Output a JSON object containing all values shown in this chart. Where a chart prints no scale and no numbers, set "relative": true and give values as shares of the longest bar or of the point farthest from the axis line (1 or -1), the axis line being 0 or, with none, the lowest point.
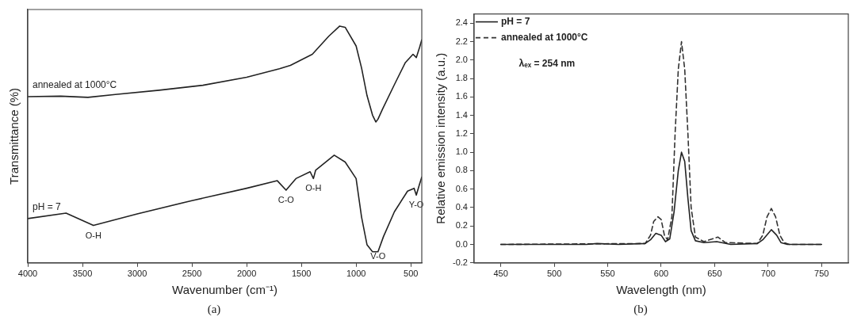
{
  "chart_data": [
    {
      "type": "line",
      "title": "(a)",
      "xlabel": "Wavenumber (cm⁻¹)",
      "ylabel": "Transmittance (%)",
      "relative": true,
      "xlim": [
        4000,
        400
      ],
      "xticks": [
        4000,
        3500,
        3000,
        2500,
        2000,
        1500,
        1000,
        500
      ],
      "tick_labels": "x",
      "grid": false,
      "marker": "none",
      "line_style": "solid",
      "series": [
        {
          "name": "annealed at 1000°C",
          "color": "#222222",
          "x": [
            4000,
            3700,
            3450,
            3200,
            2800,
            2400,
            2000,
            1700,
            1600,
            1400,
            1250,
            1150,
            1100,
            1000,
            950,
            900,
            850,
            820,
            800,
            760,
            650,
            550,
            480,
            450,
            420,
            400
          ],
          "values": [
            0.702,
            0.704,
            0.699,
            0.711,
            0.729,
            0.75,
            0.784,
            0.82,
            0.834,
            0.881,
            0.957,
            1.0,
            0.995,
            0.916,
            0.823,
            0.706,
            0.624,
            0.595,
            0.607,
            0.648,
            0.753,
            0.846,
            0.881,
            0.867,
            0.91,
            0.942
          ]
        },
        {
          "name": "pH = 7",
          "color": "#222222",
          "x": [
            4000,
            3650,
            3400,
            3000,
            2500,
            2000,
            1720,
            1640,
            1550,
            1420,
            1390,
            1370,
            1200,
            1100,
            1000,
            950,
            900,
            850,
            800,
            750,
            650,
            530,
            470,
            450,
            420,
            400
          ],
          "values": [
            0.187,
            0.21,
            0.158,
            0.207,
            0.263,
            0.315,
            0.347,
            0.307,
            0.356,
            0.385,
            0.356,
            0.391,
            0.455,
            0.426,
            0.356,
            0.193,
            0.076,
            0.047,
            0.047,
            0.111,
            0.216,
            0.303,
            0.315,
            0.286,
            0.333,
            0.362
          ]
        }
      ],
      "annotations": [
        {
          "text": "O-H",
          "x": 3400,
          "y": 0.158
        },
        {
          "text": "C-O",
          "x": 1640,
          "y": 0.307
        },
        {
          "text": "O-H",
          "x": 1390,
          "y": 0.356
        },
        {
          "text": "V-O",
          "x": 800,
          "y": 0.047
        },
        {
          "text": "Y-O",
          "x": 450,
          "y": 0.286
        }
      ]
    },
    {
      "type": "line",
      "title": "(b)",
      "xlabel": "Wavelength (nm)",
      "ylabel": "Relative emission intensity (a.u.)",
      "xlim": [
        425,
        775
      ],
      "xticks": [
        450,
        500,
        550,
        600,
        650,
        700,
        750
      ],
      "ylim": [
        -0.2,
        2.5
      ],
      "yticks": [
        -0.2,
        {
          "value": 0,
          "label": "0.0"
        },
        0.2,
        0.4,
        0.6,
        0.8,
        {
          "value": 1,
          "label": "1.0"
        },
        1.2,
        1.4,
        1.6,
        1.8,
        {
          "value": 2,
          "label": "2.0"
        },
        2.2,
        2.4
      ],
      "grid": false,
      "legend": "top left",
      "marker": "none",
      "series": [
        {
          "name": "pH = 7",
          "color": "#222222",
          "line_style": "solid",
          "x": [
            450,
            530,
            540,
            560,
            585,
            590,
            595,
            600,
            604,
            608,
            612,
            616,
            619,
            622,
            625,
            628,
            632,
            640,
            652,
            665,
            690,
            695,
            703,
            708,
            712,
            718,
            750
          ],
          "values": [
            0,
            0,
            0.01,
            0,
            0.01,
            0.05,
            0.12,
            0.1,
            0.03,
            0.06,
            0.35,
            0.8,
            1.0,
            0.9,
            0.5,
            0.15,
            0.04,
            0.02,
            0.03,
            0,
            0.01,
            0.05,
            0.16,
            0.1,
            0.02,
            0,
            0
          ]
        },
        {
          "name": "annealed at 1000°C",
          "color": "#333333",
          "line_style": "dashed",
          "x": [
            450,
            585,
            590,
            593,
            597,
            600,
            603,
            606,
            610,
            613,
            616,
            619,
            622,
            625,
            628,
            632,
            640,
            653,
            660,
            690,
            695,
            699,
            703,
            707,
            711,
            715,
            720,
            750
          ],
          "values": [
            0,
            0.01,
            0.1,
            0.25,
            0.3,
            0.27,
            0.1,
            0.05,
            0.3,
            1.2,
            1.9,
            2.2,
            1.9,
            1.2,
            0.4,
            0.08,
            0.03,
            0.08,
            0.02,
            0.01,
            0.1,
            0.3,
            0.39,
            0.3,
            0.1,
            0.02,
            0,
            0
          ]
        }
      ],
      "annotations": [
        "λₑₓ = 254 nm"
      ]
    }
  ]
}
